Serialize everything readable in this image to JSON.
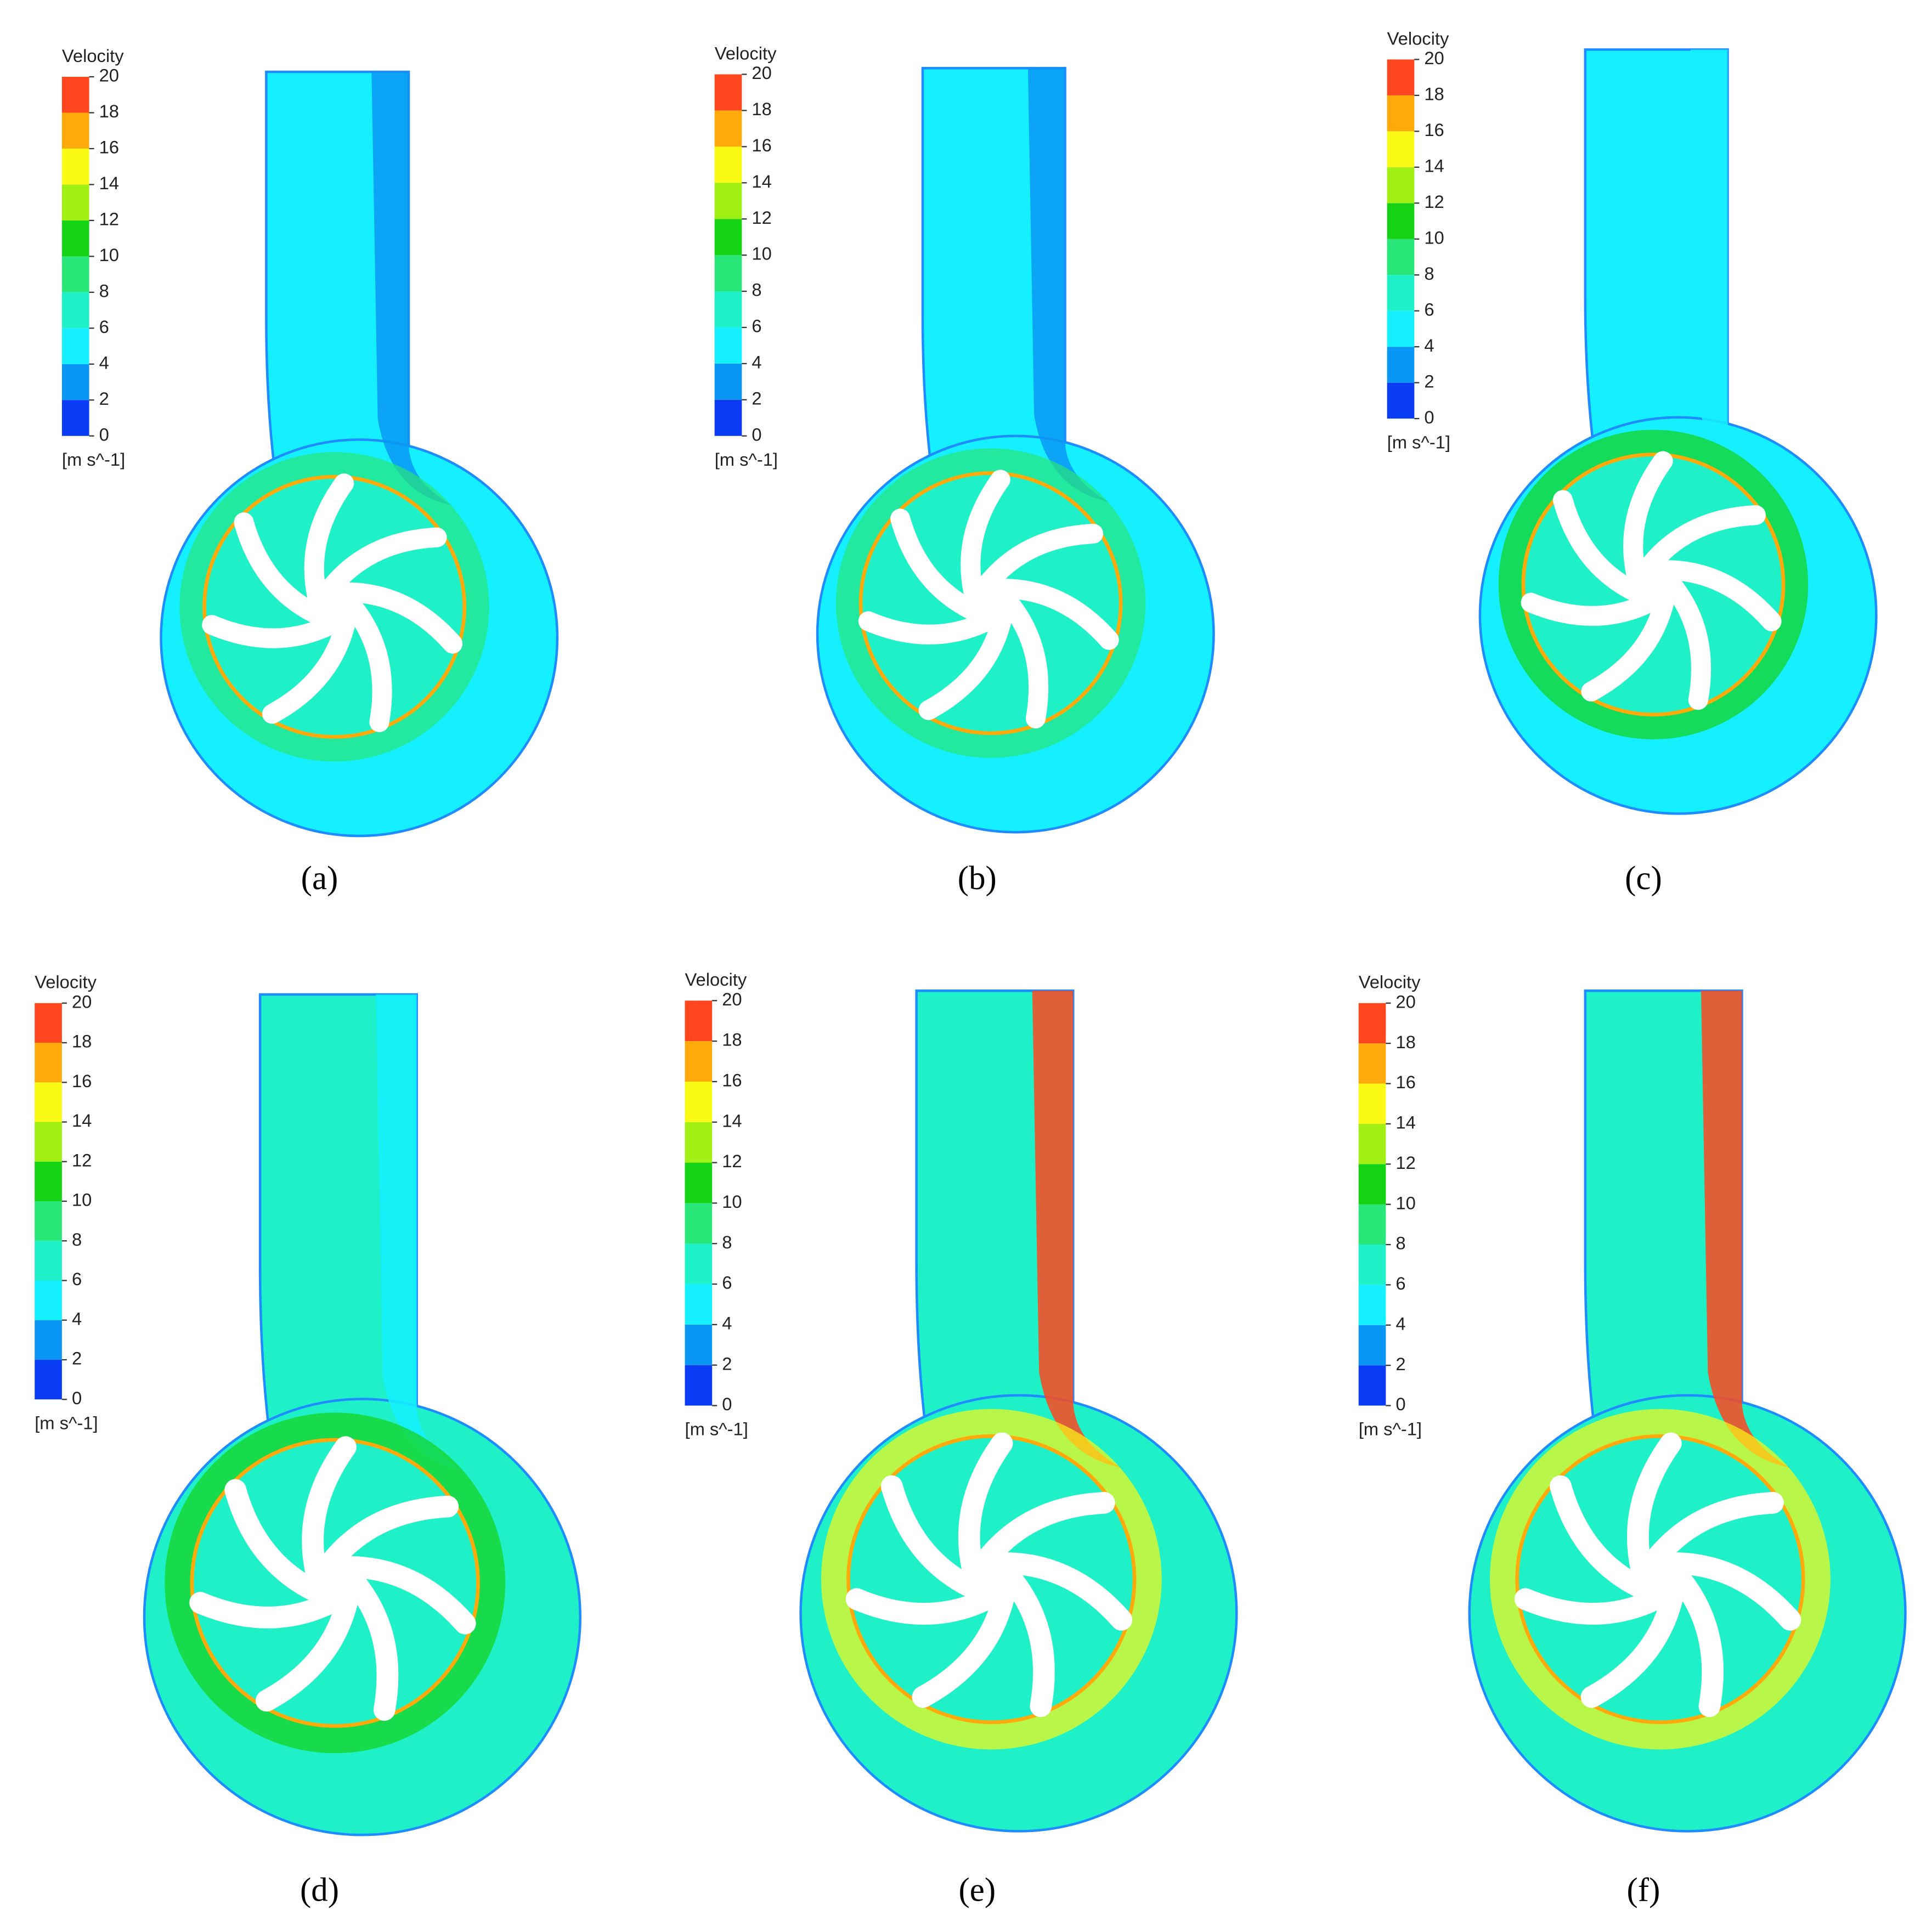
{
  "panels": [
    {
      "label": "(a)",
      "legend": {
        "title": "Velocity",
        "ticks": [
          0,
          2,
          4,
          6,
          8,
          10,
          12,
          14,
          16,
          18,
          20
        ],
        "units": "[m s^-1]"
      }
    },
    {
      "label": "(b)",
      "legend": {
        "title": "Velocity",
        "ticks": [
          0,
          2,
          4,
          6,
          8,
          10,
          12,
          14,
          16,
          18,
          20
        ],
        "units": "[m s^-1]"
      }
    },
    {
      "label": "(c)",
      "legend": {
        "title": "Velocity",
        "ticks": [
          0,
          2,
          4,
          6,
          8,
          10,
          12,
          14,
          16,
          18,
          20
        ],
        "units": "[m s^-1]"
      }
    },
    {
      "label": "(d)",
      "legend": {
        "title": "Velocity",
        "ticks": [
          0,
          2,
          4,
          6,
          8,
          10,
          12,
          14,
          16,
          18,
          20
        ],
        "units": "[m s^-1]"
      }
    },
    {
      "label": "(e)",
      "legend": {
        "title": "Velocity",
        "ticks": [
          0,
          2,
          4,
          6,
          8,
          10,
          12,
          14,
          16,
          18,
          20
        ],
        "units": "[m s^-1]"
      }
    },
    {
      "label": "(f)",
      "legend": {
        "title": "Velocity",
        "ticks": [
          0,
          2,
          4,
          6,
          8,
          10,
          12,
          14,
          16,
          18,
          20
        ],
        "units": "[m s^-1]"
      }
    }
  ],
  "colors": [
    "#0a3cf5",
    "#0a96f5",
    "#14f0ff",
    "#1ef0c8",
    "#28e678",
    "#14d214",
    "#a0f014",
    "#fafa14",
    "#ffaa0a",
    "#ff461e"
  ]
}
